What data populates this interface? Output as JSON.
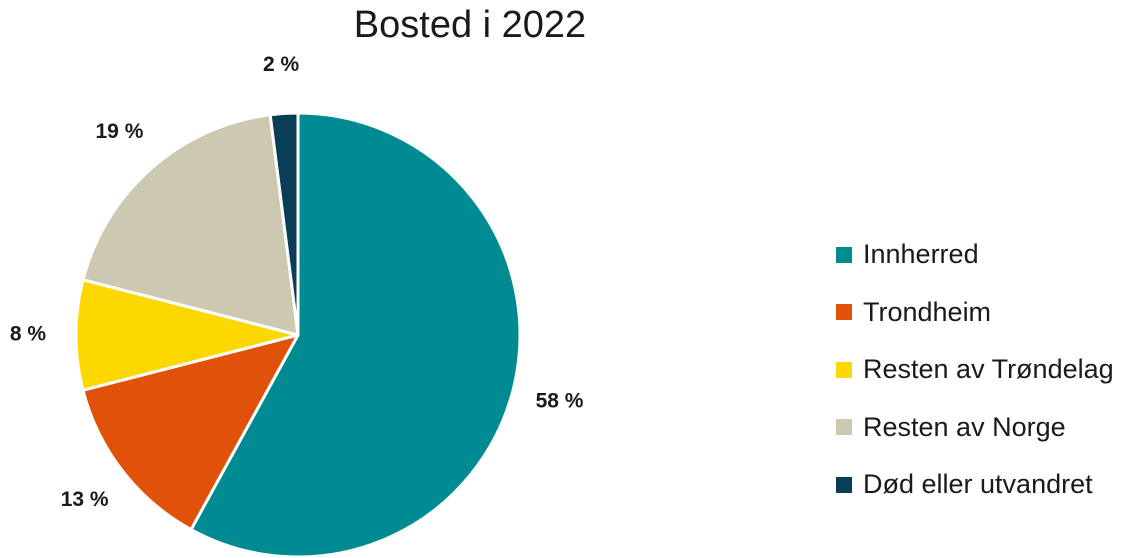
{
  "chart_data": {
    "type": "pie",
    "title": "Bosted i 2022",
    "categories": [
      "Innherred",
      "Trondheim",
      "Resten av Trøndelag",
      "Resten av Norge",
      "Død eller utvandret"
    ],
    "values": [
      58,
      13,
      8,
      19,
      2
    ],
    "data_labels": [
      "58 %",
      "13 %",
      "8 %",
      "19 %",
      "2 %"
    ],
    "colors": [
      "#008B93",
      "#E0520A",
      "#FDD700",
      "#CDC9B1",
      "#083F56"
    ],
    "start_angle": "12 o'clock",
    "direction": "clockwise",
    "legend_position": "right"
  }
}
